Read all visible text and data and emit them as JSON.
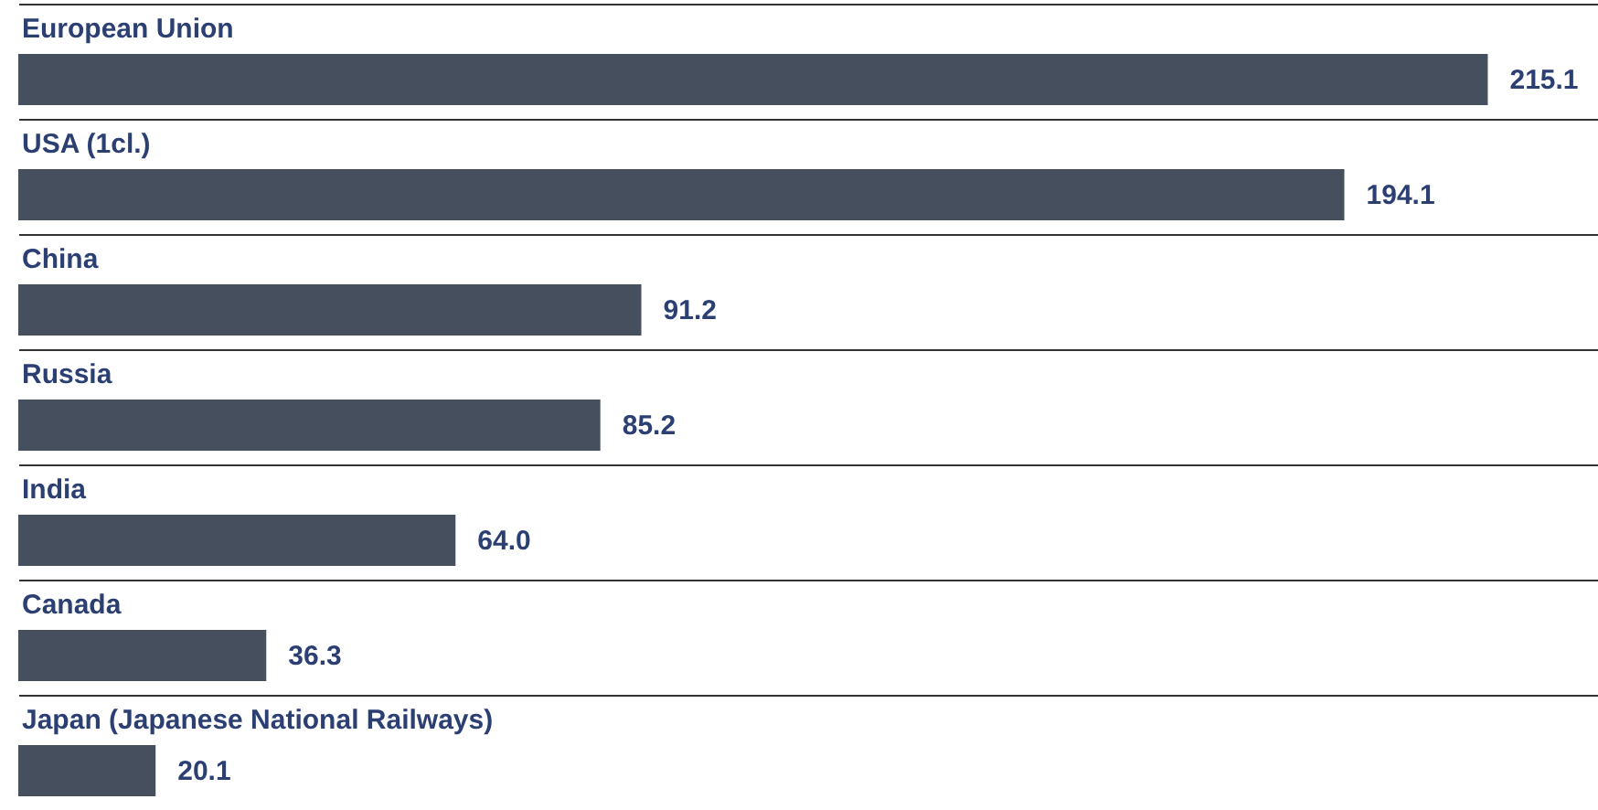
{
  "chart_data": {
    "type": "bar",
    "orientation": "horizontal",
    "categories": [
      "European Union",
      "USA (1cl.)",
      "China",
      "Russia",
      "India",
      "Canada",
      "Japan (Japanese National Railways)"
    ],
    "values": [
      215.1,
      194.1,
      91.2,
      85.2,
      64.0,
      36.3,
      20.1
    ],
    "value_labels": [
      "215.1",
      "194.1",
      "91.2",
      "85.2",
      "64.0",
      "36.3",
      "20.1"
    ],
    "color": "#454f5e",
    "grid": "y"
  }
}
